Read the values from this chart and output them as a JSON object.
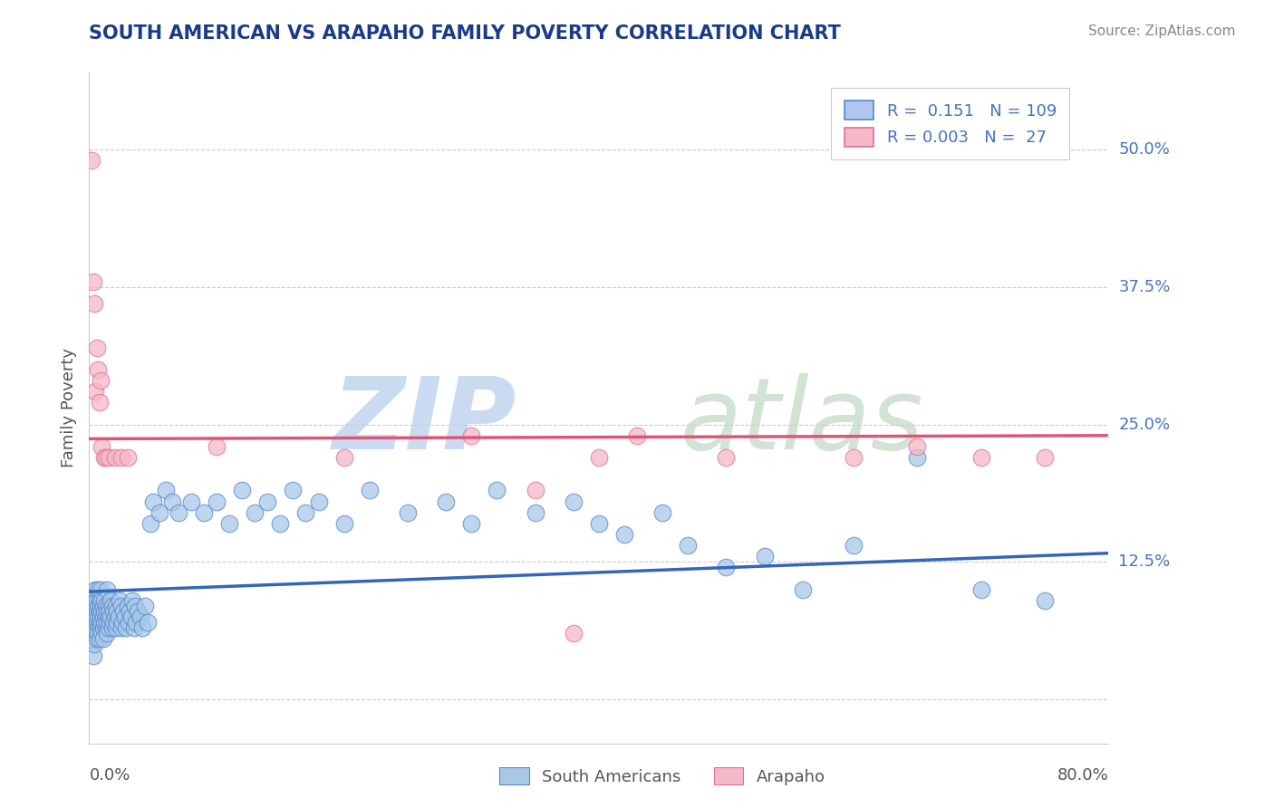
{
  "title": "SOUTH AMERICAN VS ARAPAHO FAMILY POVERTY CORRELATION CHART",
  "source": "Source: ZipAtlas.com",
  "ylabel": "Family Poverty",
  "yticks": [
    0.0,
    0.125,
    0.25,
    0.375,
    0.5
  ],
  "ytick_labels": [
    "",
    "12.5%",
    "25.0%",
    "37.5%",
    "50.0%"
  ],
  "xlim": [
    0.0,
    0.8
  ],
  "ylim": [
    -0.04,
    0.57
  ],
  "south_american_color": "#a8c8e8",
  "south_american_edge": "#5588cc",
  "arapaho_color": "#f4b8c8",
  "arapaho_edge": "#e07090",
  "sa_line_color": "#3366bb",
  "ar_line_color": "#e05575",
  "sa_line_x": [
    0.0,
    0.8
  ],
  "sa_line_y": [
    0.098,
    0.133
  ],
  "ar_line_x": [
    0.0,
    0.8
  ],
  "ar_line_y": [
    0.237,
    0.24
  ],
  "background_color": "#ffffff",
  "grid_color": "#cccccc",
  "title_color": "#1a3a8a",
  "source_color": "#888888",
  "label_color": "#4472c4",
  "blue_scatter": [
    [
      0.002,
      0.055
    ],
    [
      0.003,
      0.04
    ],
    [
      0.003,
      0.07
    ],
    [
      0.004,
      0.06
    ],
    [
      0.004,
      0.09
    ],
    [
      0.004,
      0.05
    ],
    [
      0.005,
      0.08
    ],
    [
      0.005,
      0.065
    ],
    [
      0.005,
      0.1
    ],
    [
      0.005,
      0.075
    ],
    [
      0.006,
      0.07
    ],
    [
      0.006,
      0.055
    ],
    [
      0.006,
      0.09
    ],
    [
      0.006,
      0.08
    ],
    [
      0.007,
      0.065
    ],
    [
      0.007,
      0.085
    ],
    [
      0.007,
      0.075
    ],
    [
      0.007,
      0.06
    ],
    [
      0.007,
      0.1
    ],
    [
      0.008,
      0.07
    ],
    [
      0.008,
      0.08
    ],
    [
      0.008,
      0.055
    ],
    [
      0.008,
      0.09
    ],
    [
      0.009,
      0.075
    ],
    [
      0.009,
      0.065
    ],
    [
      0.009,
      0.1
    ],
    [
      0.009,
      0.085
    ],
    [
      0.01,
      0.07
    ],
    [
      0.01,
      0.08
    ],
    [
      0.01,
      0.06
    ],
    [
      0.01,
      0.09
    ],
    [
      0.011,
      0.075
    ],
    [
      0.011,
      0.065
    ],
    [
      0.011,
      0.085
    ],
    [
      0.011,
      0.055
    ],
    [
      0.012,
      0.07
    ],
    [
      0.012,
      0.08
    ],
    [
      0.012,
      0.09
    ],
    [
      0.013,
      0.075
    ],
    [
      0.013,
      0.065
    ],
    [
      0.013,
      0.085
    ],
    [
      0.014,
      0.07
    ],
    [
      0.014,
      0.08
    ],
    [
      0.014,
      0.06
    ],
    [
      0.014,
      0.1
    ],
    [
      0.015,
      0.075
    ],
    [
      0.015,
      0.065
    ],
    [
      0.015,
      0.085
    ],
    [
      0.016,
      0.07
    ],
    [
      0.016,
      0.08
    ],
    [
      0.017,
      0.075
    ],
    [
      0.017,
      0.09
    ],
    [
      0.018,
      0.065
    ],
    [
      0.018,
      0.085
    ],
    [
      0.019,
      0.07
    ],
    [
      0.019,
      0.08
    ],
    [
      0.02,
      0.075
    ],
    [
      0.021,
      0.065
    ],
    [
      0.021,
      0.085
    ],
    [
      0.022,
      0.07
    ],
    [
      0.022,
      0.08
    ],
    [
      0.023,
      0.075
    ],
    [
      0.024,
      0.09
    ],
    [
      0.025,
      0.065
    ],
    [
      0.025,
      0.085
    ],
    [
      0.026,
      0.07
    ],
    [
      0.027,
      0.08
    ],
    [
      0.028,
      0.075
    ],
    [
      0.029,
      0.065
    ],
    [
      0.03,
      0.085
    ],
    [
      0.031,
      0.07
    ],
    [
      0.032,
      0.08
    ],
    [
      0.033,
      0.075
    ],
    [
      0.034,
      0.09
    ],
    [
      0.035,
      0.065
    ],
    [
      0.036,
      0.085
    ],
    [
      0.037,
      0.07
    ],
    [
      0.038,
      0.08
    ],
    [
      0.04,
      0.075
    ],
    [
      0.042,
      0.065
    ],
    [
      0.044,
      0.085
    ],
    [
      0.046,
      0.07
    ],
    [
      0.048,
      0.16
    ],
    [
      0.05,
      0.18
    ],
    [
      0.055,
      0.17
    ],
    [
      0.06,
      0.19
    ],
    [
      0.065,
      0.18
    ],
    [
      0.07,
      0.17
    ],
    [
      0.08,
      0.18
    ],
    [
      0.09,
      0.17
    ],
    [
      0.1,
      0.18
    ],
    [
      0.11,
      0.16
    ],
    [
      0.12,
      0.19
    ],
    [
      0.13,
      0.17
    ],
    [
      0.14,
      0.18
    ],
    [
      0.15,
      0.16
    ],
    [
      0.16,
      0.19
    ],
    [
      0.17,
      0.17
    ],
    [
      0.18,
      0.18
    ],
    [
      0.2,
      0.16
    ],
    [
      0.22,
      0.19
    ],
    [
      0.25,
      0.17
    ],
    [
      0.28,
      0.18
    ],
    [
      0.3,
      0.16
    ],
    [
      0.32,
      0.19
    ],
    [
      0.35,
      0.17
    ],
    [
      0.38,
      0.18
    ],
    [
      0.4,
      0.16
    ],
    [
      0.42,
      0.15
    ],
    [
      0.45,
      0.17
    ],
    [
      0.47,
      0.14
    ],
    [
      0.5,
      0.12
    ],
    [
      0.53,
      0.13
    ],
    [
      0.56,
      0.1
    ],
    [
      0.6,
      0.14
    ],
    [
      0.65,
      0.22
    ],
    [
      0.7,
      0.1
    ],
    [
      0.75,
      0.09
    ]
  ],
  "pink_scatter": [
    [
      0.002,
      0.49
    ],
    [
      0.003,
      0.38
    ],
    [
      0.004,
      0.36
    ],
    [
      0.005,
      0.28
    ],
    [
      0.006,
      0.32
    ],
    [
      0.007,
      0.3
    ],
    [
      0.008,
      0.27
    ],
    [
      0.009,
      0.29
    ],
    [
      0.01,
      0.23
    ],
    [
      0.012,
      0.22
    ],
    [
      0.013,
      0.22
    ],
    [
      0.015,
      0.22
    ],
    [
      0.02,
      0.22
    ],
    [
      0.025,
      0.22
    ],
    [
      0.03,
      0.22
    ],
    [
      0.1,
      0.23
    ],
    [
      0.2,
      0.22
    ],
    [
      0.3,
      0.24
    ],
    [
      0.35,
      0.19
    ],
    [
      0.38,
      0.06
    ],
    [
      0.4,
      0.22
    ],
    [
      0.43,
      0.24
    ],
    [
      0.5,
      0.22
    ],
    [
      0.6,
      0.22
    ],
    [
      0.65,
      0.23
    ],
    [
      0.7,
      0.22
    ],
    [
      0.75,
      0.22
    ]
  ]
}
